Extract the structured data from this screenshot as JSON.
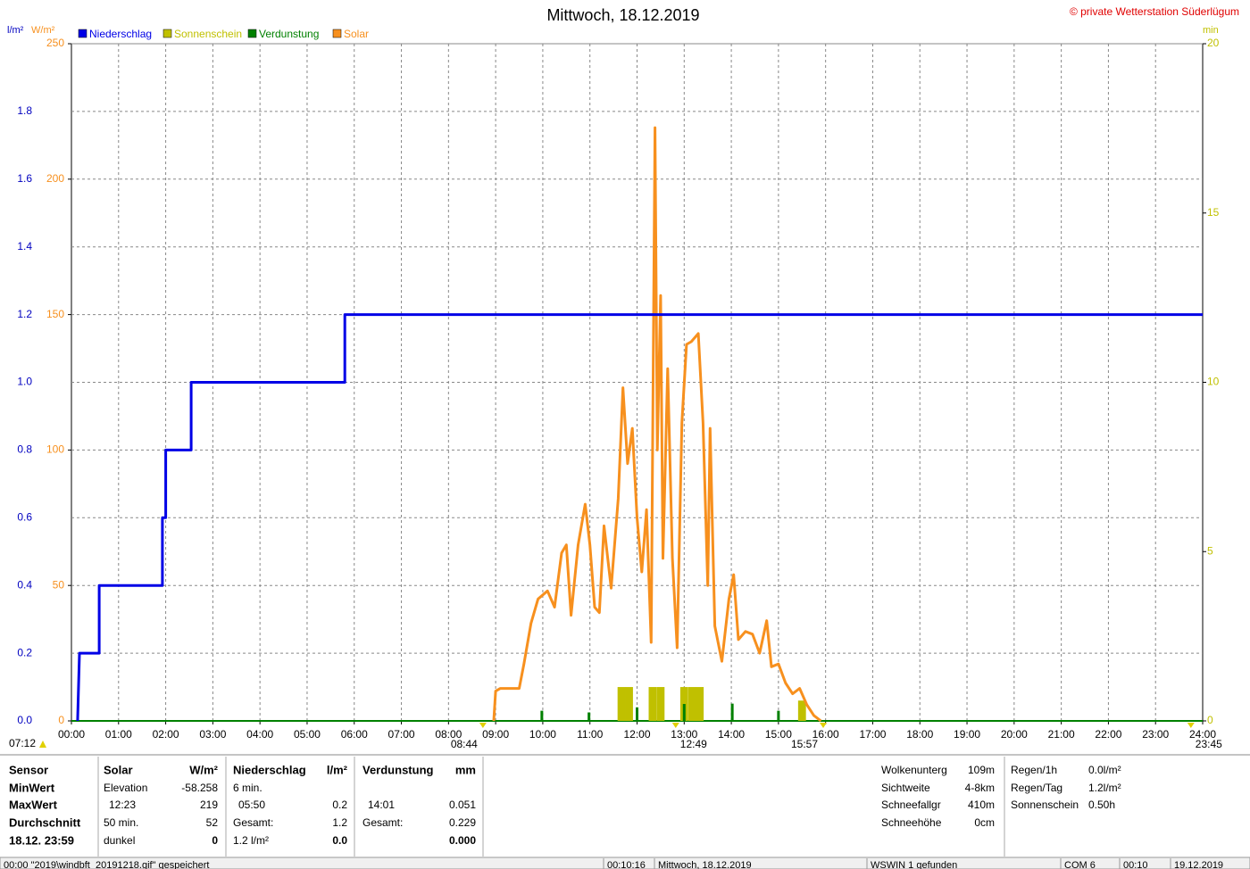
{
  "chart_data": {
    "type": "line",
    "title": "Mittwoch, 18.12.2019",
    "copyright": "© private Wetterstation Süderlügum",
    "ylabel": "l/m²",
    "y2label": "W/m²",
    "y3label": "min",
    "xlim": [
      0,
      24
    ],
    "xticks": [
      {
        "value": 0,
        "label": "00:00"
      },
      {
        "value": 1,
        "label": "01:00"
      },
      {
        "value": 2,
        "label": "02:00"
      },
      {
        "value": 3,
        "label": "03:00"
      },
      {
        "value": 4,
        "label": "04:00"
      },
      {
        "value": 5,
        "label": "05:00"
      },
      {
        "value": 6,
        "label": "06:00"
      },
      {
        "value": 7,
        "label": "07:00"
      },
      {
        "value": 8,
        "label": "08:00"
      },
      {
        "value": 9,
        "label": "09:00"
      },
      {
        "value": 10,
        "label": "10:00"
      },
      {
        "value": 11,
        "label": "11:00"
      },
      {
        "value": 12,
        "label": "12:00"
      },
      {
        "value": 13,
        "label": "13:00"
      },
      {
        "value": 14,
        "label": "14:00"
      },
      {
        "value": 15,
        "label": "15:00"
      },
      {
        "value": 16,
        "label": "16:00"
      },
      {
        "value": 17,
        "label": "17:00"
      },
      {
        "value": 18,
        "label": "18:00"
      },
      {
        "value": 19,
        "label": "19:00"
      },
      {
        "value": 20,
        "label": "20:00"
      },
      {
        "value": 21,
        "label": "21:00"
      },
      {
        "value": 22,
        "label": "22:00"
      },
      {
        "value": 23,
        "label": "23:00"
      },
      {
        "value": 24,
        "label": "24:00"
      }
    ],
    "ylim": [
      0,
      2
    ],
    "yticks": [
      {
        "value": 0,
        "label": "0.0"
      },
      {
        "value": 0.2,
        "label": "0.2"
      },
      {
        "value": 0.4,
        "label": "0.4"
      },
      {
        "value": 0.6,
        "label": "0.6"
      },
      {
        "value": 0.8,
        "label": "0.8"
      },
      {
        "value": 1,
        "label": "1.0"
      },
      {
        "value": 1.2,
        "label": "1.2"
      },
      {
        "value": 1.4,
        "label": "1.4"
      },
      {
        "value": 1.6,
        "label": "1.6"
      },
      {
        "value": 1.8,
        "label": "1.8"
      }
    ],
    "y2lim": [
      0,
      250
    ],
    "y2ticks": [
      0,
      50,
      100,
      150,
      200,
      250
    ],
    "y3lim": [
      0,
      20
    ],
    "y3ticks": [
      0,
      5,
      10,
      15,
      20
    ],
    "grid": true,
    "series": [
      {
        "name": "Niederschlag",
        "type": "line",
        "color": "#0000e6",
        "x": [
          0.13,
          0.17,
          0.59,
          0.59,
          1.93,
          1.93,
          2.0,
          2.0,
          2.54,
          2.54,
          5.8,
          5.8,
          24
        ],
        "values": [
          0,
          0.2,
          0.2,
          0.4,
          0.4,
          0.6,
          0.6,
          0.8,
          0.8,
          1.0,
          1.0,
          1.2,
          1.2
        ]
      },
      {
        "name": "Sonnenschein",
        "type": "bar",
        "axis": "y3",
        "color": "#c0c000",
        "x": [
          11.67,
          11.83,
          12.33,
          12.5,
          13.0,
          13.17,
          13.33,
          15.5
        ],
        "values": [
          1,
          1,
          1,
          1,
          1,
          1,
          1,
          0.6
        ]
      },
      {
        "name": "Verdunstung",
        "type": "bar",
        "color": "#008000",
        "x": [
          9.98,
          10.98,
          12.0,
          13.0,
          14.02,
          15.0
        ],
        "values": [
          0.03,
          0.025,
          0.04,
          0.05,
          0.051,
          0.03
        ]
      },
      {
        "name": "Solar",
        "type": "line",
        "axis": "y2",
        "color": "#f7901e",
        "x": [
          8.96,
          9.0,
          9.1,
          9.3,
          9.5,
          9.6,
          9.75,
          9.9,
          10.1,
          10.25,
          10.4,
          10.5,
          10.6,
          10.75,
          10.9,
          11.0,
          11.1,
          11.2,
          11.3,
          11.45,
          11.6,
          11.7,
          11.8,
          11.9,
          12.0,
          12.1,
          12.2,
          12.3,
          12.38,
          12.43,
          12.5,
          12.55,
          12.65,
          12.75,
          12.85,
          12.95,
          13.05,
          13.15,
          13.3,
          13.4,
          13.5,
          13.55,
          13.65,
          13.8,
          13.95,
          14.05,
          14.15,
          14.3,
          14.45,
          14.6,
          14.75,
          14.85,
          15.0,
          15.15,
          15.3,
          15.45,
          15.6,
          15.75,
          15.9
        ],
        "values": [
          0,
          11,
          12,
          12,
          12,
          21,
          36,
          45,
          48,
          42,
          62,
          65,
          39,
          65,
          80,
          65,
          42,
          40,
          72,
          49,
          82,
          123,
          95,
          108,
          75,
          55,
          78,
          29,
          219,
          100,
          157,
          60,
          130,
          60,
          27,
          110,
          139,
          140,
          143,
          110,
          50,
          108,
          35,
          22,
          45,
          54,
          30,
          33,
          32,
          25,
          37,
          20,
          21,
          14,
          10,
          12,
          6,
          2,
          0
        ]
      }
    ],
    "markers": [
      {
        "label": "07:12"
      },
      {
        "label": "08:44",
        "x": 8.73
      },
      {
        "label": "12:49",
        "x": 12.82
      },
      {
        "label": "15:57",
        "x": 15.95
      },
      {
        "label": "23:45",
        "x": 23.75
      }
    ]
  },
  "table": {
    "columns": [
      {
        "header": "Sensor",
        "rows": [
          {
            "label": "MinWert"
          },
          {
            "label": "MaxWert"
          },
          {
            "label": "Durchschnitt"
          },
          {
            "label": "18.12. 23:59"
          }
        ]
      },
      {
        "header": "Solar",
        "unit": "W/m²",
        "rows": [
          {
            "label": "Elevation",
            "value": "-58.258"
          },
          {
            "label": "12:23",
            "value": "219"
          },
          {
            "label": "50 min.",
            "value": "52"
          },
          {
            "label": "dunkel",
            "value": "0"
          }
        ]
      },
      {
        "header": "Niederschlag",
        "unit": "l/m²",
        "rows": [
          {
            "label": "6 min."
          },
          {
            "label": "05:50",
            "value": "0.2"
          },
          {
            "label": "Gesamt:",
            "value": "1.2"
          },
          {
            "label": "1.2 l/m²",
            "value": "0.0"
          }
        ]
      },
      {
        "header": "Verdunstung",
        "unit": "mm",
        "rows": [
          {},
          {
            "label": "14:01",
            "value": "0.051"
          },
          {
            "label": "Gesamt:",
            "value": "0.229"
          },
          {
            "value": "0.000"
          }
        ]
      }
    ]
  },
  "info": [
    {
      "label": "Wolkenunterg",
      "value": "109m"
    },
    {
      "label": "Sichtweite",
      "value": "4-8km"
    },
    {
      "label": "Schneefallgr",
      "value": "410m"
    },
    {
      "label": "Schneehöhe",
      "value": "0cm"
    }
  ],
  "summary": [
    {
      "label": "Regen/1h",
      "value": "0.0l/m²"
    },
    {
      "label": "Regen/Tag",
      "value": "1.2l/m²"
    },
    {
      "label": "Sonnenschein",
      "value": "0.50h"
    }
  ],
  "status_bar": [
    "00:00  \"2019\\windbft_20191218.gif\" gespeichert",
    "00:10:16",
    "Mittwoch, 18.12.2019",
    "WSWIN 1 gefunden",
    "COM 6",
    "00:10",
    "19.12.2019"
  ]
}
